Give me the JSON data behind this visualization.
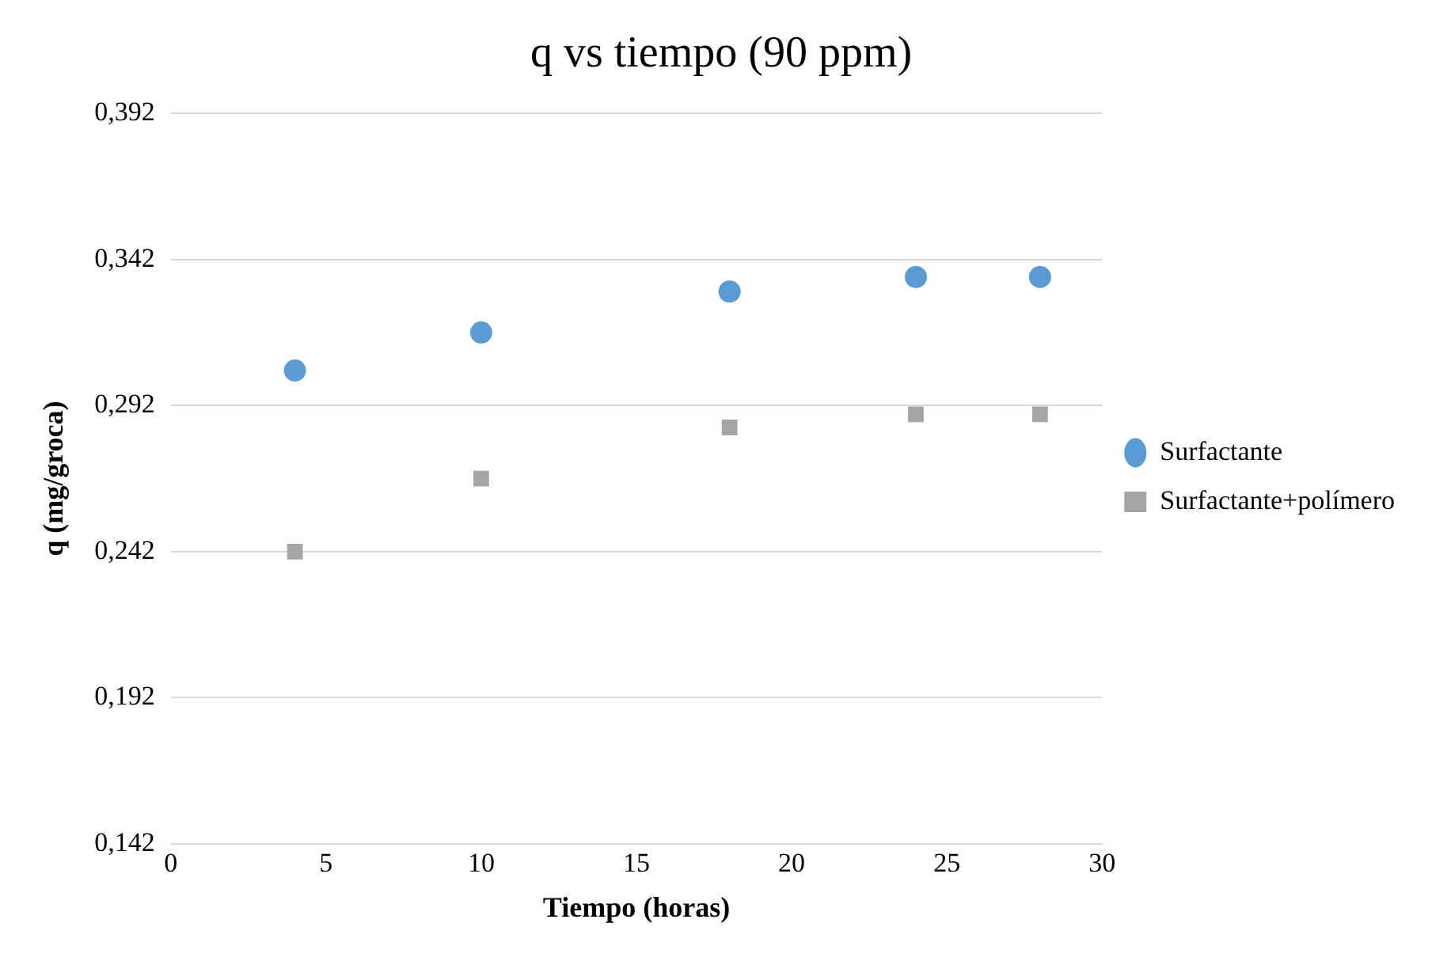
{
  "chart_data": {
    "type": "scatter",
    "title": "q vs tiempo (90 ppm)",
    "xlabel": "Tiempo (horas)",
    "ylabel": "q (mg/groca)",
    "x": [
      4,
      10,
      18,
      24,
      28
    ],
    "series": [
      {
        "name": "Surfactante",
        "color": "#5b9bd5",
        "marker": "circle",
        "values": [
          0.304,
          0.317,
          0.331,
          0.336,
          0.336
        ]
      },
      {
        "name": "Surfactante+polímero",
        "color": "#a5a5a5",
        "marker": "square",
        "values": [
          0.242,
          0.267,
          0.2845,
          0.289,
          0.289
        ]
      }
    ],
    "xlim": [
      0,
      30
    ],
    "xticks": [
      0,
      5,
      10,
      15,
      20,
      25,
      30
    ],
    "ylim": [
      0.142,
      0.392
    ],
    "yticks": [
      {
        "value": 0.142,
        "label": "0,142"
      },
      {
        "value": 0.192,
        "label": "0,192"
      },
      {
        "value": 0.242,
        "label": "0,242"
      },
      {
        "value": 0.292,
        "label": "0,292"
      },
      {
        "value": 0.342,
        "label": "0,342"
      },
      {
        "value": 0.392,
        "label": "0,392"
      }
    ],
    "grid": "y",
    "legend": "right"
  }
}
